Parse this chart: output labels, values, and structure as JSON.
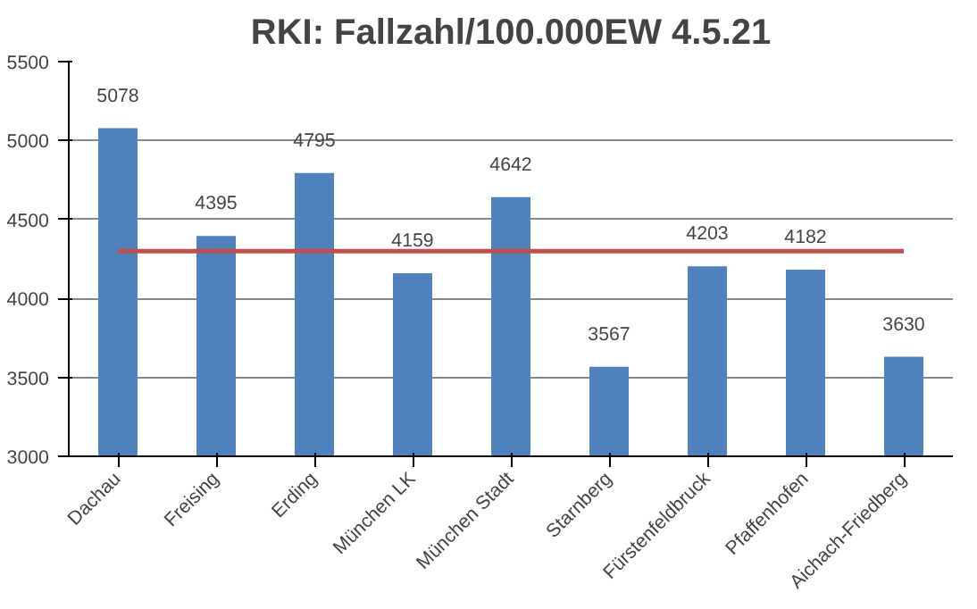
{
  "chart_data": {
    "type": "bar",
    "title": "RKI: Fallzahl/100.000EW 4.5.21",
    "categories": [
      "Dachau",
      "Freising",
      "Erding",
      "München LK",
      "München Stadt",
      "Starnberg",
      "Fürstenfeldbruck",
      "Pfaffenhofen",
      "Aichach-Friedberg"
    ],
    "series": [
      {
        "color": "#4f81bd",
        "values": [
          5078,
          4395,
          4795,
          4159,
          4642,
          3567,
          4203,
          4182,
          3630
        ],
        "value_labels": [
          "5078",
          "4395",
          "4795",
          "4159",
          "4642",
          "3567",
          "4203",
          "4182",
          "3630"
        ]
      },
      {
        "type": "line",
        "color": "#c0504d",
        "values": [
          4300,
          4300,
          4300,
          4300,
          4300,
          4300,
          4300,
          4300,
          4300
        ]
      }
    ],
    "ylim": [
      3000,
      5500
    ],
    "yticks": [
      3000,
      3500,
      4000,
      4500,
      5000,
      5500
    ],
    "grid": "y"
  }
}
